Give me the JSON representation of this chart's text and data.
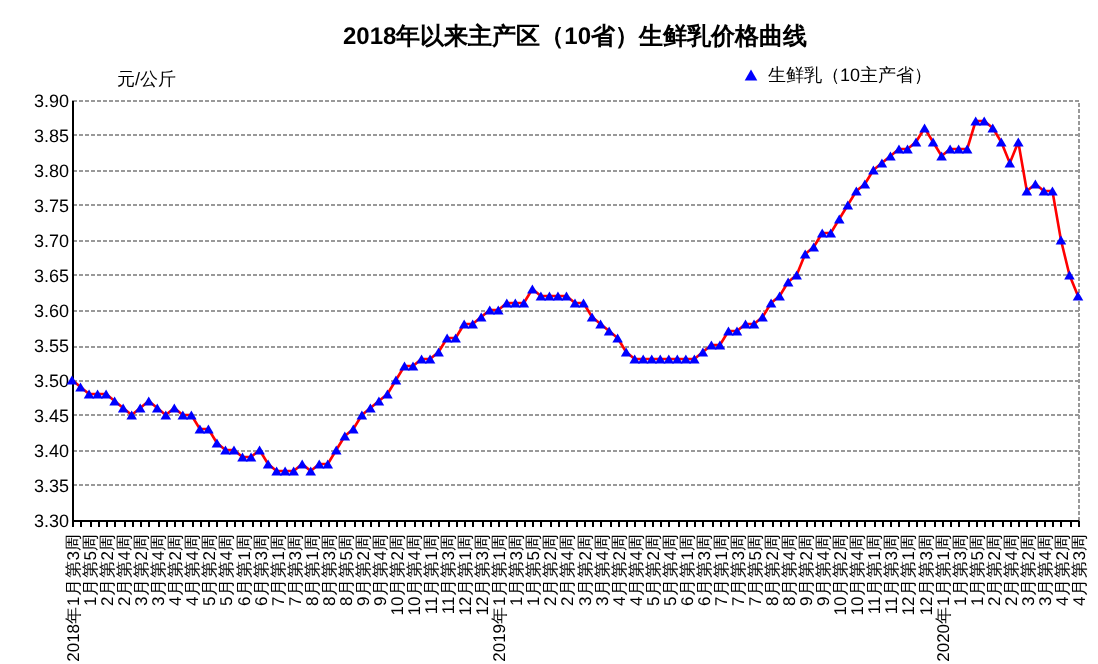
{
  "chart_data": {
    "type": "line",
    "title": "2018年以来主产区（10省）生鲜乳价格曲线",
    "ylabel": "元/公斤",
    "categories": [
      "2018年1月第3周",
      null,
      "1月第5周",
      null,
      "2月第2周",
      null,
      "2月第4周",
      null,
      "3月第2周",
      null,
      "3月第4周",
      null,
      "4月第2周",
      null,
      "4月第4周",
      null,
      "5月第2周",
      null,
      "5月第4周",
      null,
      "6月第1周",
      null,
      "6月第3周",
      null,
      "7月第1周",
      null,
      "7月第3周",
      null,
      "8月第1周",
      null,
      "8月第3周",
      null,
      "8月第5周",
      null,
      "9月第2周",
      null,
      "9月第4周",
      null,
      "10月第2周",
      null,
      "10月第4周",
      null,
      "11月第1周",
      null,
      "11月第3周",
      null,
      "12月第1周",
      null,
      "12月第3周",
      null,
      "2019年1月第1周",
      null,
      "1月第3周",
      null,
      "1月第5周",
      null,
      "2月第2周",
      null,
      "2月第4周",
      null,
      "3月第2周",
      null,
      "3月第4周",
      null,
      "4月第2周",
      null,
      "4月第4周",
      null,
      "5月第2周",
      null,
      "5月第4周",
      null,
      "6月第1周",
      null,
      "6月第3周",
      null,
      "7月第1周",
      null,
      "7月第3周",
      null,
      "7月第5周",
      null,
      "8月第2周",
      null,
      "8月第4周",
      null,
      "9月第2周",
      null,
      "9月第4周",
      null,
      "10月第2周",
      null,
      "10月第4周",
      null,
      "11月第1周",
      null,
      "11月第3周",
      null,
      "12月第1周",
      null,
      "12月第3周",
      null,
      "2020年1月第1周",
      null,
      "1月第3周",
      null,
      "1月第5周",
      null,
      "2月第2周",
      null,
      "2月第4周",
      null,
      "3月第2周",
      null,
      "3月第4周",
      null,
      "4月第2周",
      null,
      "4月第3周"
    ],
    "series": [
      {
        "name": "生鲜乳（10主产省）",
        "color": "#0000ff",
        "values": [
          3.5,
          3.49,
          3.48,
          3.48,
          3.48,
          3.47,
          3.46,
          3.45,
          3.46,
          3.47,
          3.46,
          3.45,
          3.46,
          3.45,
          3.45,
          3.43,
          3.43,
          3.41,
          3.4,
          3.4,
          3.39,
          3.39,
          3.4,
          3.38,
          3.37,
          3.37,
          3.37,
          3.38,
          3.37,
          3.38,
          3.38,
          3.4,
          3.42,
          3.43,
          3.45,
          3.46,
          3.47,
          3.48,
          3.5,
          3.52,
          3.52,
          3.53,
          3.53,
          3.54,
          3.56,
          3.56,
          3.58,
          3.58,
          3.59,
          3.6,
          3.6,
          3.61,
          3.61,
          3.61,
          3.63,
          3.62,
          3.62,
          3.62,
          3.62,
          3.61,
          3.61,
          3.59,
          3.58,
          3.57,
          3.56,
          3.54,
          3.53,
          3.53,
          3.53,
          3.53,
          3.53,
          3.53,
          3.53,
          3.53,
          3.54,
          3.55,
          3.55,
          3.57,
          3.57,
          3.58,
          3.58,
          3.59,
          3.61,
          3.62,
          3.64,
          3.65,
          3.68,
          3.69,
          3.71,
          3.71,
          3.73,
          3.75,
          3.77,
          3.78,
          3.8,
          3.81,
          3.82,
          3.83,
          3.83,
          3.84,
          3.86,
          3.84,
          3.82,
          3.83,
          3.83,
          3.83,
          3.87,
          3.87,
          3.86,
          3.84,
          3.81,
          3.84,
          3.77,
          3.78,
          3.77,
          3.77,
          3.7,
          3.65,
          3.62
        ]
      }
    ],
    "ylim": [
      3.3,
      3.9
    ],
    "yticks": [
      {
        "value": 3.3,
        "label": "3.30"
      },
      {
        "value": 3.35,
        "label": "3.35"
      },
      {
        "value": 3.4,
        "label": "3.40"
      },
      {
        "value": 3.45,
        "label": "3.45"
      },
      {
        "value": 3.5,
        "label": "3.50"
      },
      {
        "value": 3.55,
        "label": "3.55"
      },
      {
        "value": 3.6,
        "label": "3.60"
      },
      {
        "value": 3.65,
        "label": "3.65"
      },
      {
        "value": 3.7,
        "label": "3.70"
      },
      {
        "value": 3.75,
        "label": "3.75"
      },
      {
        "value": 3.8,
        "label": "3.80"
      },
      {
        "value": 3.85,
        "label": "3.85"
      },
      {
        "value": 3.9,
        "label": "3.90"
      }
    ],
    "grid": "y",
    "legend": "top right",
    "marker": "triangle",
    "line_style": "solid"
  }
}
